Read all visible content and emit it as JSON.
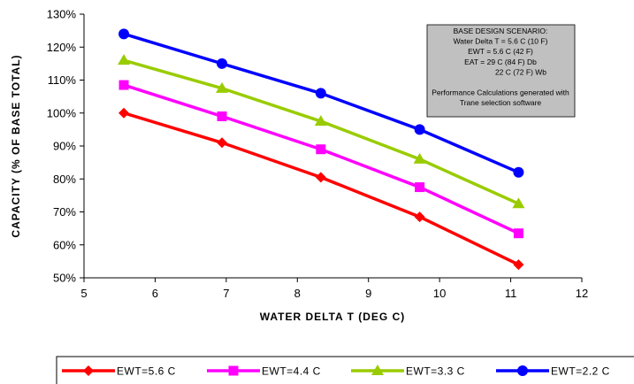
{
  "chart_data": {
    "type": "line",
    "xlabel": "WATER DELTA T (DEG C)",
    "ylabel": "CAPACITY (% OF BASE TOTAL)",
    "xlim": [
      5,
      12
    ],
    "ylim": [
      50,
      130
    ],
    "x_ticks": [
      "5",
      "6",
      "7",
      "8",
      "9",
      "10",
      "11",
      "12"
    ],
    "y_ticks": [
      "50%",
      "60%",
      "70%",
      "80%",
      "90%",
      "100%",
      "110%",
      "120%",
      "130%"
    ],
    "grid": false,
    "legend_position": "bottom",
    "x": [
      5.56,
      6.94,
      8.33,
      9.72,
      11.11
    ],
    "series": [
      {
        "name": "EWT=5.6 C",
        "color": "#ff0000",
        "marker": "diamond",
        "values": [
          100,
          91,
          80.5,
          68.5,
          54
        ]
      },
      {
        "name": "EWT=4.4 C",
        "color": "#ff00ff",
        "marker": "square",
        "values": [
          108.5,
          99,
          89,
          77.5,
          63.5
        ]
      },
      {
        "name": "EWT=3.3 C",
        "color": "#99cc00",
        "marker": "triangle",
        "values": [
          116,
          107.5,
          97.5,
          86,
          72.5
        ]
      },
      {
        "name": "EWT=2.2 C",
        "color": "#0000ff",
        "marker": "circle",
        "values": [
          124,
          115,
          106,
          95,
          82
        ]
      }
    ],
    "annotation": {
      "lines": [
        "BASE DESIGN SCENARIO:",
        "Water Delta T = 5.6 C (10 F)",
        "EWT = 5.6 C (42 F)",
        "EAT = 29 C (84 F) Db",
        "22 C (72 F) Wb",
        "",
        "Performance Calculations generated with",
        "Trane selection software"
      ],
      "background": "#c0c0c0"
    }
  }
}
